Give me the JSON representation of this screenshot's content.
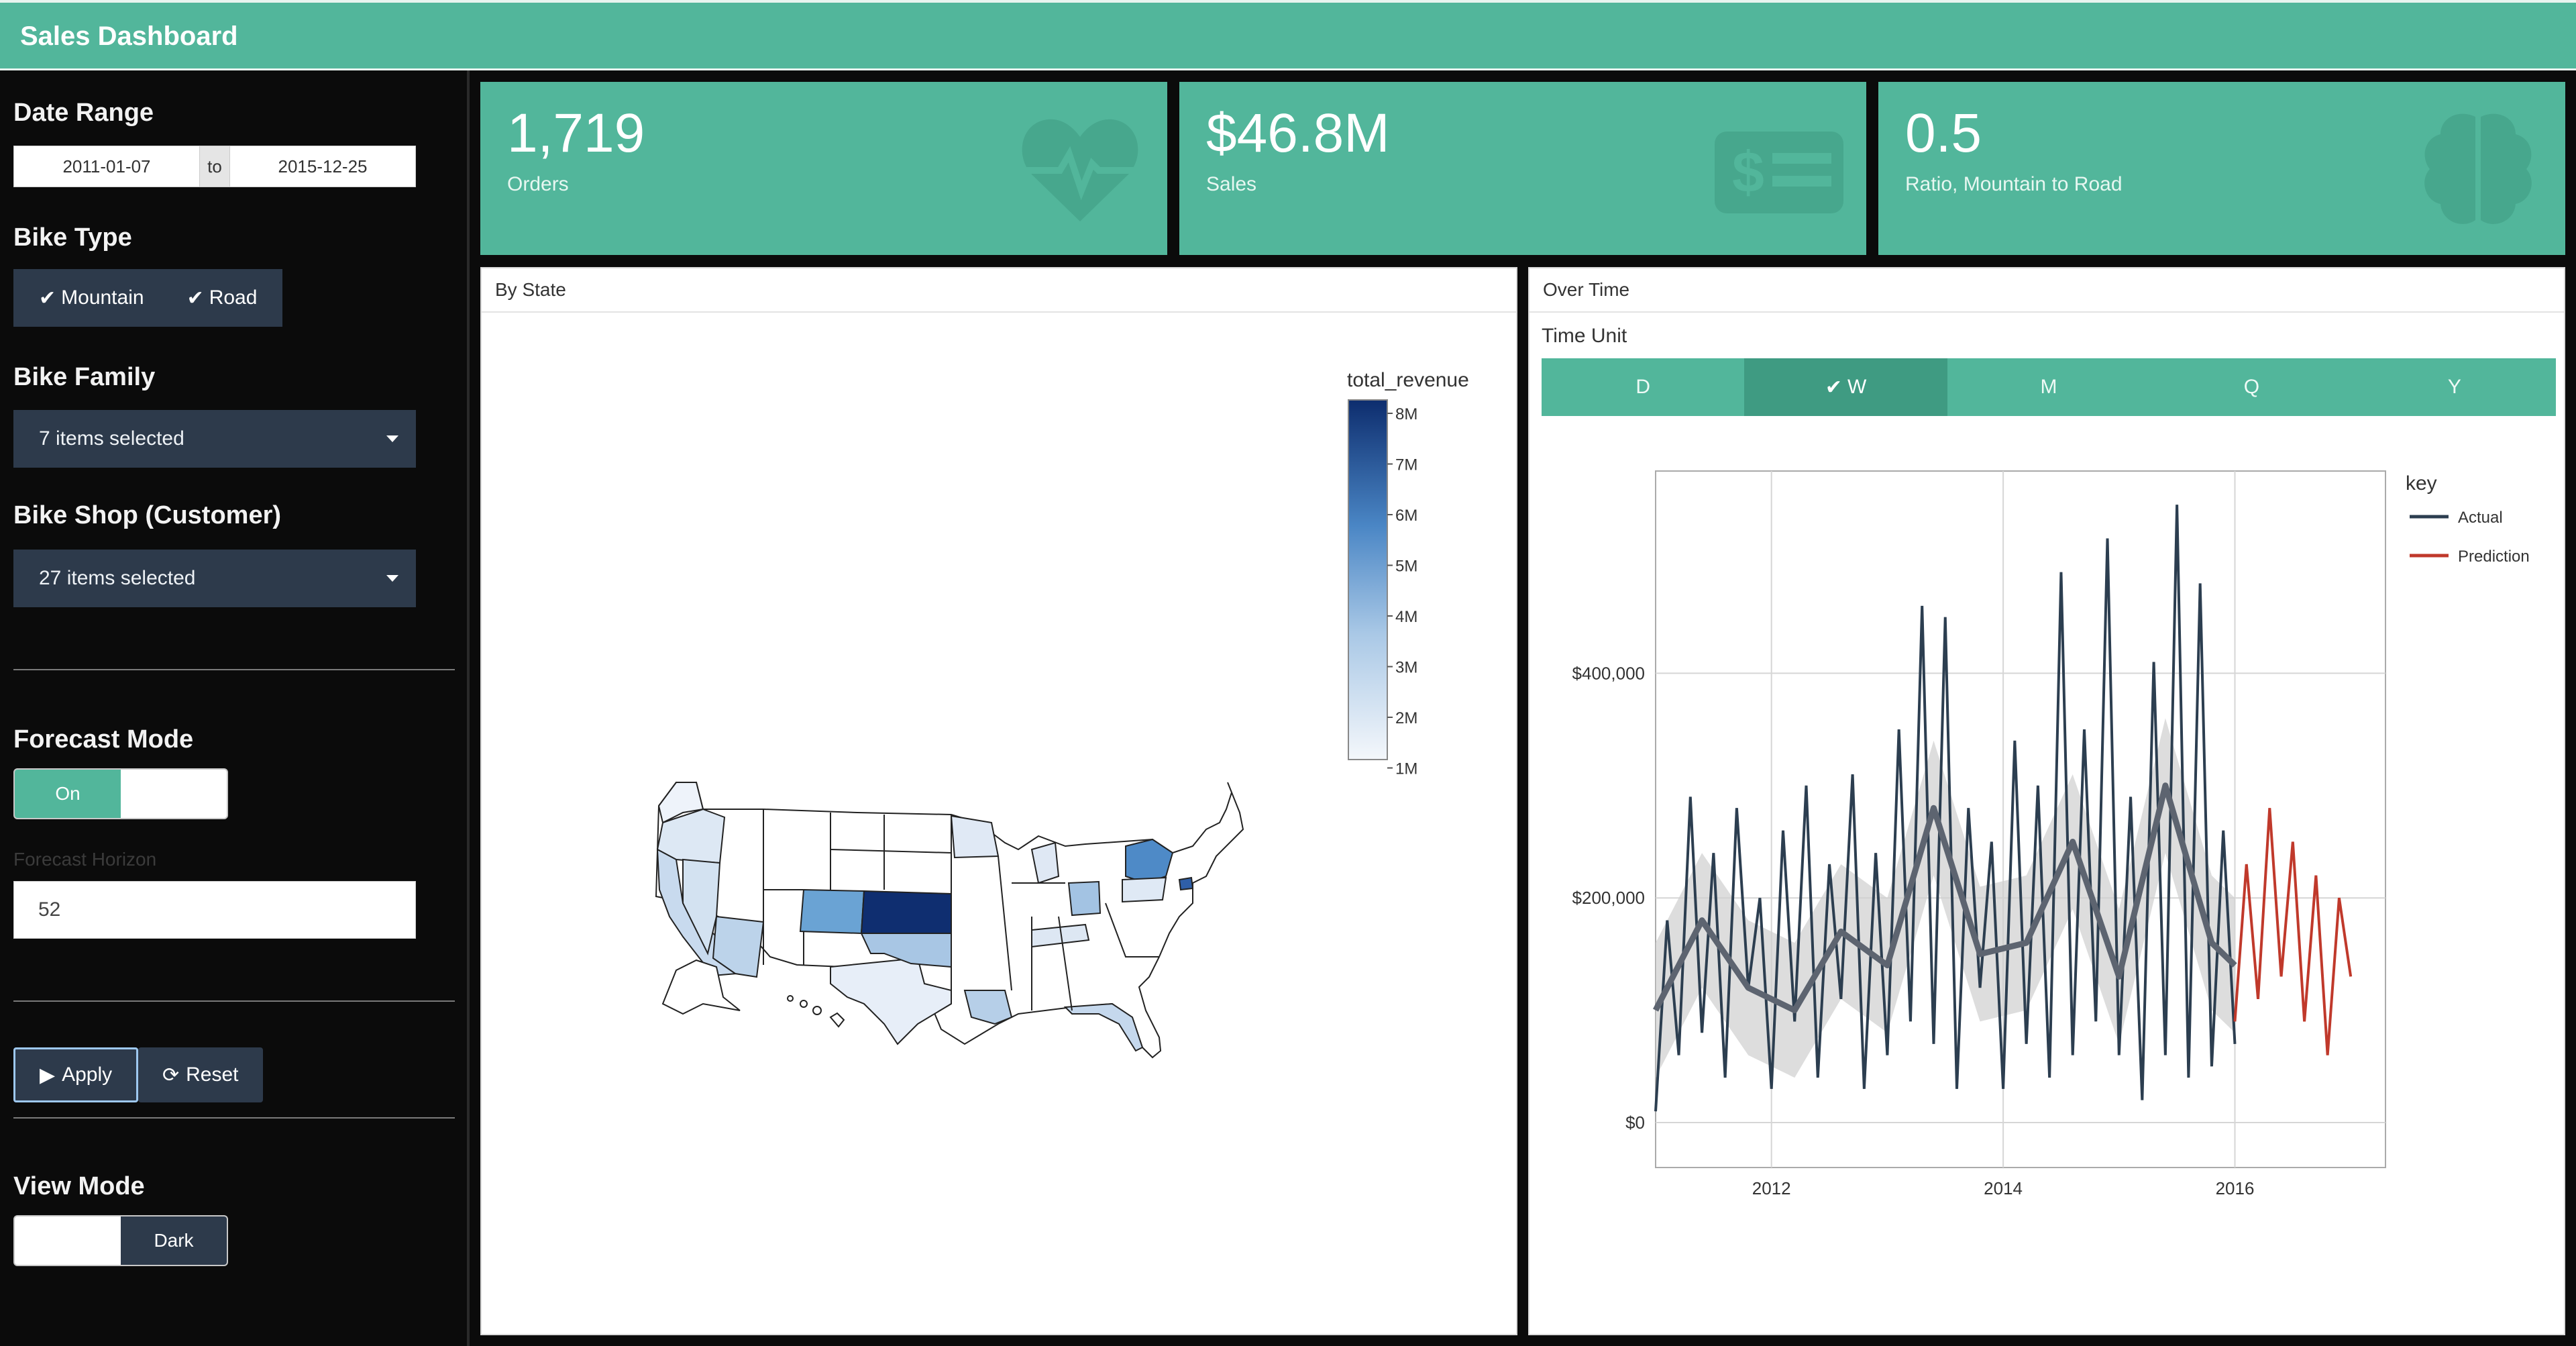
{
  "app": {
    "title": "Sales Dashboard"
  },
  "sidebar": {
    "date_range": {
      "label": "Date Range",
      "start": "2011-01-07",
      "sep": "to",
      "end": "2015-12-25"
    },
    "bike_type": {
      "label": "Bike Type",
      "options": [
        "Mountain",
        "Road"
      ]
    },
    "bike_family": {
      "label": "Bike Family",
      "value": "7 items selected"
    },
    "bike_shop": {
      "label": "Bike Shop (Customer)",
      "value": "27 items selected"
    },
    "forecast_mode": {
      "label": "Forecast Mode",
      "on_label": "On"
    },
    "forecast_horizon": {
      "label": "Forecast Horizon",
      "value": "52"
    },
    "apply_label": "Apply",
    "reset_label": "Reset",
    "view_mode": {
      "label": "View Mode",
      "dark_label": "Dark"
    }
  },
  "kpis": [
    {
      "value": "1,719",
      "label": "Orders",
      "icon": "heartbeat-icon"
    },
    {
      "value": "$46.8M",
      "label": "Sales",
      "icon": "money-bill-icon"
    },
    {
      "value": "0.5",
      "label": "Ratio, Mountain to Road",
      "icon": "brain-icon"
    }
  ],
  "map_panel": {
    "title": "By State",
    "legend_title": "total_revenue",
    "legend_ticks": [
      "8M",
      "7M",
      "6M",
      "5M",
      "4M",
      "3M",
      "2M",
      "1M"
    ],
    "colors": {
      "low": "#f4f7fb",
      "high": "#0d2d6e"
    }
  },
  "time_panel": {
    "title": "Over Time",
    "time_unit_label": "Time Unit",
    "units": [
      "D",
      "W",
      "M",
      "Q",
      "Y"
    ],
    "active_unit": "W"
  },
  "chart_data": {
    "type": "line",
    "title": "",
    "xlabel": "",
    "ylabel": "",
    "x_ticks": [
      "2012",
      "2014",
      "2016"
    ],
    "y_ticks": [
      "$0",
      "$200,000",
      "$400,000"
    ],
    "xlim": [
      2011.0,
      2017.3
    ],
    "ylim": [
      -40000,
      580000
    ],
    "legend": {
      "title": "key",
      "position": "top-right"
    },
    "series": [
      {
        "name": "Actual",
        "color": "#2c3e50",
        "x": [
          2011.0,
          2011.1,
          2011.2,
          2011.3,
          2011.4,
          2011.5,
          2011.6,
          2011.7,
          2011.8,
          2011.9,
          2012.0,
          2012.1,
          2012.2,
          2012.3,
          2012.4,
          2012.5,
          2012.6,
          2012.7,
          2012.8,
          2012.9,
          2013.0,
          2013.1,
          2013.2,
          2013.3,
          2013.4,
          2013.5,
          2013.6,
          2013.7,
          2013.8,
          2013.9,
          2014.0,
          2014.1,
          2014.2,
          2014.3,
          2014.4,
          2014.5,
          2014.6,
          2014.7,
          2014.8,
          2014.9,
          2015.0,
          2015.1,
          2015.2,
          2015.3,
          2015.4,
          2015.5,
          2015.6,
          2015.7,
          2015.8,
          2015.9,
          2016.0
        ],
        "y": [
          10000,
          180000,
          60000,
          290000,
          80000,
          240000,
          40000,
          280000,
          120000,
          200000,
          30000,
          260000,
          90000,
          300000,
          40000,
          230000,
          110000,
          310000,
          30000,
          240000,
          60000,
          350000,
          90000,
          460000,
          70000,
          450000,
          30000,
          280000,
          120000,
          250000,
          30000,
          340000,
          70000,
          300000,
          40000,
          490000,
          60000,
          350000,
          90000,
          520000,
          60000,
          290000,
          20000,
          410000,
          60000,
          550000,
          40000,
          480000,
          50000,
          260000,
          70000
        ]
      },
      {
        "name": "Prediction",
        "color": "#c0392b",
        "x": [
          2016.0,
          2016.1,
          2016.2,
          2016.3,
          2016.4,
          2016.5,
          2016.6,
          2016.7,
          2016.8,
          2016.9,
          2017.0
        ],
        "y": [
          90000,
          230000,
          110000,
          280000,
          130000,
          250000,
          90000,
          220000,
          60000,
          200000,
          130000
        ]
      }
    ],
    "trend": {
      "color": "#5d6470",
      "x": [
        2011.0,
        2011.4,
        2011.8,
        2012.2,
        2012.6,
        2013.0,
        2013.4,
        2013.8,
        2014.2,
        2014.6,
        2015.0,
        2015.4,
        2015.8,
        2016.0
      ],
      "y": [
        100000,
        180000,
        120000,
        100000,
        170000,
        140000,
        280000,
        150000,
        160000,
        250000,
        130000,
        300000,
        160000,
        140000
      ]
    }
  }
}
